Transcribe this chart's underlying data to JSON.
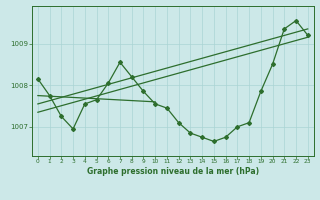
{
  "title": "Graphe pression niveau de la mer (hPa)",
  "bg_color": "#cce8e8",
  "grid_color": "#aad4d4",
  "line_color": "#2d6e2d",
  "xlim": [
    -0.5,
    23.5
  ],
  "ylim": [
    1006.3,
    1009.9
  ],
  "yticks": [
    1007,
    1008,
    1009
  ],
  "xticks": [
    0,
    1,
    2,
    3,
    4,
    5,
    6,
    7,
    8,
    9,
    10,
    11,
    12,
    13,
    14,
    15,
    16,
    17,
    18,
    19,
    20,
    21,
    22,
    23
  ],
  "main_x": [
    0,
    1,
    2,
    3,
    4,
    5,
    6,
    7,
    8,
    9,
    10,
    11,
    12,
    13,
    14,
    15,
    16,
    17,
    18,
    19,
    20,
    21,
    22,
    23
  ],
  "main_y": [
    1008.15,
    1007.75,
    1007.25,
    1006.95,
    1007.55,
    1007.65,
    1008.05,
    1008.55,
    1008.2,
    1007.85,
    1007.55,
    1007.45,
    1007.1,
    1006.85,
    1006.75,
    1006.65,
    1006.75,
    1007.0,
    1007.1,
    1007.85,
    1008.5,
    1009.35,
    1009.55,
    1009.2
  ],
  "trend1_x": [
    0,
    23
  ],
  "trend1_y": [
    1007.35,
    1009.15
  ],
  "trend2_x": [
    0,
    23
  ],
  "trend2_y": [
    1007.55,
    1009.35
  ],
  "trend3_x": [
    0,
    10
  ],
  "trend3_y": [
    1007.75,
    1007.6
  ]
}
